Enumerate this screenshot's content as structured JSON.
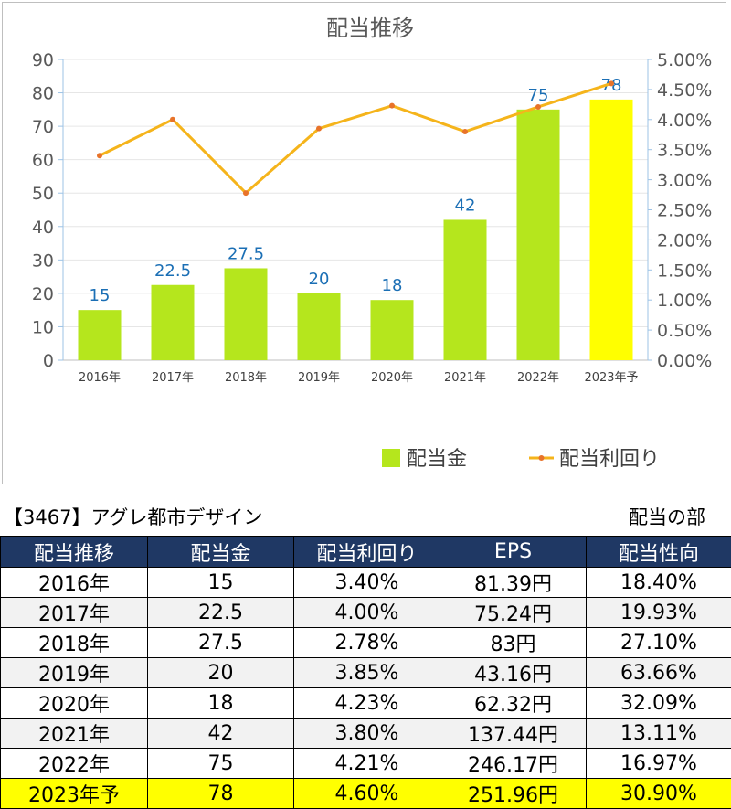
{
  "chart_data": {
    "type": "bar",
    "title": "配当推移",
    "categories": [
      "2016年",
      "2017年",
      "2018年",
      "2019年",
      "2020年",
      "2021年",
      "2022年",
      "2023年予"
    ],
    "series": [
      {
        "name": "配当金",
        "type": "bar",
        "axis": "left",
        "values": [
          15,
          22.5,
          27.5,
          20,
          18,
          42,
          75,
          78
        ],
        "data_labels": [
          "15",
          "22.5",
          "27.5",
          "20",
          "18",
          "42",
          "75",
          "78"
        ]
      },
      {
        "name": "配当利回り",
        "type": "line",
        "axis": "right",
        "values": [
          3.4,
          4.0,
          2.78,
          3.85,
          4.23,
          3.8,
          4.21,
          4.6
        ]
      }
    ],
    "y_left": {
      "range": [
        0,
        90
      ],
      "ticks": [
        "0",
        "10",
        "20",
        "30",
        "40",
        "50",
        "60",
        "70",
        "80",
        "90"
      ]
    },
    "y_right": {
      "range": [
        0,
        5
      ],
      "unit": "%",
      "ticks": [
        "0.00%",
        "0.50%",
        "1.00%",
        "1.50%",
        "2.00%",
        "2.50%",
        "3.00%",
        "3.50%",
        "4.00%",
        "4.50%",
        "5.00%"
      ]
    },
    "grid": true,
    "legend_position": "bottom-right",
    "colors": {
      "bar": "#b5e61d",
      "bar_highlight": "#ffff00",
      "line": "#f5b41b",
      "marker": "#e8732a",
      "data_label": "#1b6fb5",
      "title": "#595959"
    }
  },
  "header": {
    "left": "【3467】アグレ都市デザイン",
    "right": "配当の部"
  },
  "table": {
    "columns": [
      "配当推移",
      "配当金",
      "配当利回り",
      "EPS",
      "配当性向"
    ],
    "rows": [
      [
        "2016年",
        "15",
        "3.40%",
        "81.39円",
        "18.40%"
      ],
      [
        "2017年",
        "22.5",
        "4.00%",
        "75.24円",
        "19.93%"
      ],
      [
        "2018年",
        "27.5",
        "2.78%",
        "83円",
        "27.10%"
      ],
      [
        "2019年",
        "20",
        "3.85%",
        "43.16円",
        "63.66%"
      ],
      [
        "2020年",
        "18",
        "4.23%",
        "62.32円",
        "32.09%"
      ],
      [
        "2021年",
        "42",
        "3.80%",
        "137.44円",
        "13.11%"
      ],
      [
        "2022年",
        "75",
        "4.21%",
        "246.17円",
        "16.97%"
      ],
      [
        "2023年予",
        "78",
        "4.60%",
        "251.96円",
        "30.90%"
      ]
    ]
  }
}
